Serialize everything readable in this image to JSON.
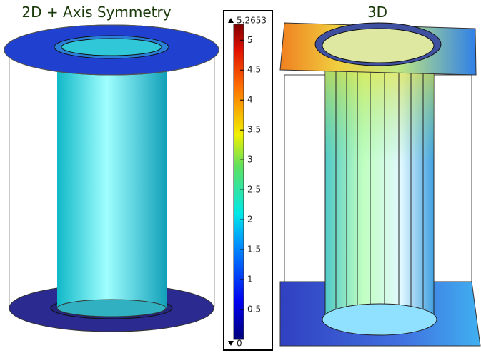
{
  "panels": [
    {
      "title": "2D + Axis Symmetry"
    },
    {
      "title": "3D"
    }
  ],
  "colorbar": {
    "max": 5.2653,
    "min": 0,
    "ticks": [
      0.5,
      1,
      1.5,
      2,
      2.5,
      3,
      3.5,
      4,
      4.5,
      5
    ]
  }
}
